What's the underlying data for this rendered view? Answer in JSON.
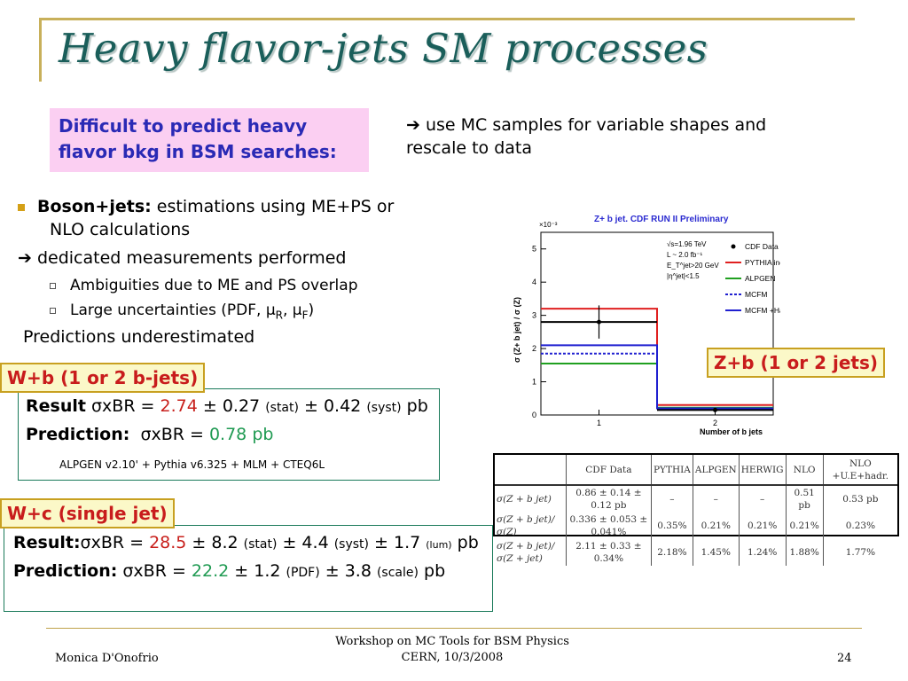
{
  "slide": {
    "title": "Heavy flavor-jets SM processes",
    "pink_box": [
      "Difficult to predict heavy",
      "flavor bkg in BSM searches:"
    ],
    "mc_note": [
      "use MC samples for variable shapes and",
      "rescale to data"
    ],
    "arrow_glyph": "➔",
    "boson_jets_bold": "Boson+jets:",
    "boson_jets_rest": "estimations using ME+PS or",
    "boson_jets_line2": "NLO calculations",
    "dedicated": "dedicated measurements performed",
    "ambiguities": "Ambiguities due to ME and PS overlap",
    "uncertainties": "Large uncertainties (PDF, μ",
    "uncertainties_r": "R",
    "uncertainties_mid": ", μ",
    "uncertainties_f": "F",
    "uncertainties_end": ")",
    "predictions": "Predictions underestimated"
  },
  "wb": {
    "label": "W+b (1 or 2 b-jets)",
    "result_bold": "Result",
    "result_sigma": "σxBR = ",
    "result_value": "2.74",
    "result_stat": " ± 0.27 ",
    "stat_label": "(stat)",
    "result_syst": " ± 0.42 ",
    "syst_label": "(syst)",
    "unit": " pb",
    "prediction_bold": "Prediction:",
    "prediction_sigma": "σxBR = ",
    "prediction_value": "0.78 pb",
    "generator": "ALPGEN v2.10' + Pythia v6.325 + MLM + CTEQ6L"
  },
  "wc": {
    "label": "W+c (single jet)",
    "result_bold": "Result:",
    "result_sigma": "σxBR = ",
    "result_value": "28.5",
    "result_stat": " ± 8.2 ",
    "stat_label": "(stat)",
    "result_syst": " ± 4.4 ",
    "syst_label": "(syst)",
    "result_lum": " ± 1.7 ",
    "lum_label": "(lum)",
    "unit": " pb",
    "prediction_bold": "Prediction:",
    "prediction_sigma": "σxBR = ",
    "prediction_value": "22.2",
    "prediction_pdf": " ± 1.2 ",
    "pdf_label": "(PDF)",
    "prediction_scale": " ± 3.8 ",
    "scale_label": "(scale)",
    "prediction_unit": " pb"
  },
  "zb_label": "Z+b (1 or 2 jets)",
  "chart_data": {
    "type": "line",
    "title": "Z+ b jet. CDF RUN II Preliminary",
    "xlabel": "Number of b jets",
    "ylabel": "σ (Z+ b jet) / σ (Z)",
    "y_multiplier": "×10⁻³",
    "xlim": [
      0.5,
      2.5
    ],
    "ylim": [
      0,
      5.5
    ],
    "x_ticks": [
      "1",
      "2"
    ],
    "y_ticks": [
      "0",
      "1",
      "2",
      "3",
      "4",
      "5"
    ],
    "info": [
      "√s=1.96 TeV",
      "L ~ 2.0 fb⁻¹",
      "E_T^jet>20 GeV",
      "|η^jet|<1.5"
    ],
    "data_point": {
      "name": "CDF Data",
      "x": [
        1,
        2
      ],
      "y": [
        2.8,
        0.15
      ],
      "yerr": [
        0.5,
        0.05
      ]
    },
    "series": [
      {
        "name": "PYTHIA incl.",
        "color": "#e02020",
        "dash": false,
        "values": [
          3.2,
          0.3
        ]
      },
      {
        "name": "ALPGEN",
        "color": "#20a020",
        "dash": false,
        "values": [
          1.55,
          0.22
        ]
      },
      {
        "name": "MCFM",
        "color": "#2020d0",
        "dash": true,
        "values": [
          1.85,
          0.18
        ]
      },
      {
        "name": "MCFM +Had.Corr.",
        "color": "#2020d0",
        "dash": false,
        "values": [
          2.1,
          0.2
        ]
      }
    ]
  },
  "table": {
    "headers": [
      "",
      "CDF Data",
      "PYTHIA",
      "ALPGEN",
      "HERWIG",
      "NLO",
      "NLO +U.E+hadr."
    ],
    "rows": [
      [
        "σ(Z + b jet)",
        "0.86 ± 0.14 ± 0.12 pb",
        "–",
        "–",
        "–",
        "0.51 pb",
        "0.53 pb"
      ],
      [
        "σ(Z + b jet)/σ(Z)",
        "0.336 ± 0.053 ± 0.041%",
        "0.35%",
        "0.21%",
        "0.21%",
        "0.21%",
        "0.23%"
      ],
      [
        "σ(Z + b jet)/σ(Z + jet)",
        "2.11 ± 0.33 ± 0.34%",
        "2.18%",
        "1.45%",
        "1.24%",
        "1.88%",
        "1.77%"
      ]
    ]
  },
  "footer": {
    "author": "Monica D'Onofrio",
    "workshop_line1": "Workshop on MC Tools for BSM Physics",
    "workshop_line2": "CERN, 10/3/2008",
    "page": "24"
  }
}
